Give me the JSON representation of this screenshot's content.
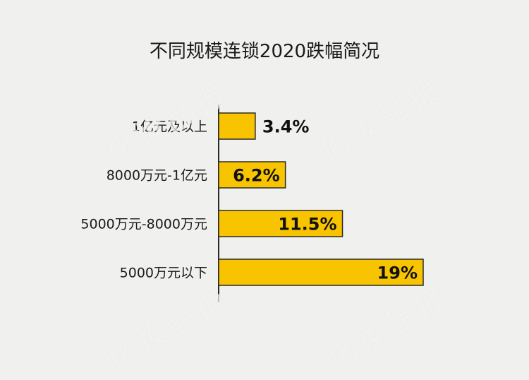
{
  "chart_data": {
    "type": "bar",
    "orientation": "horizontal",
    "title": "不同规模连锁2020跌幅简况",
    "categories": [
      "1亿元及以上",
      "8000万元-1亿元",
      "5000万元-8000万元",
      "5000万元以下"
    ],
    "values": [
      3.4,
      6.2,
      11.5,
      19
    ],
    "value_labels": [
      "3.4%",
      "6.2%",
      "11.5%",
      "19%"
    ],
    "xlabel": "",
    "ylabel": "",
    "xlim": [
      0,
      19
    ],
    "grid": false,
    "legend": "none",
    "bar_color": "#f8c400",
    "bar_edge_color": "#2a2a2a"
  },
  "watermark_text": "化妆品报"
}
